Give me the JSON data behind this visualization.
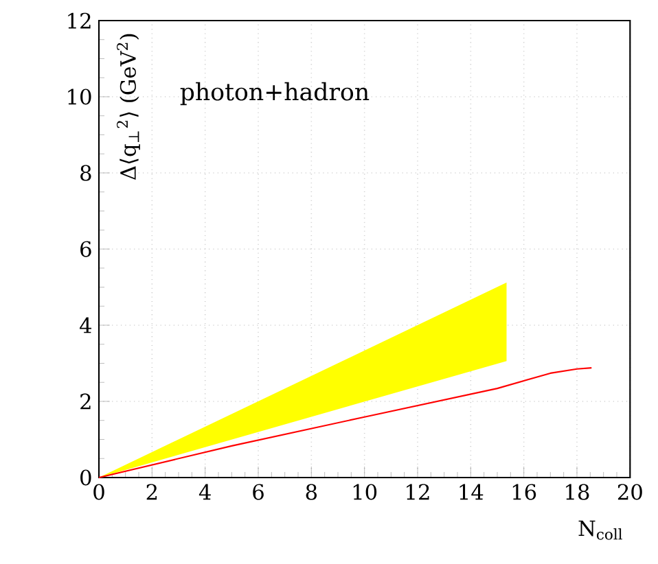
{
  "chart_data": {
    "type": "line",
    "xlabel": "N$_{coll}$",
    "ylabel": "Δ⟨q$_{⊥}$$^{2}$⟩ (GeV$^{2}$)",
    "annotations": [
      "photon+hadron"
    ],
    "series": [
      {
        "type": "area",
        "color": "#ffff00",
        "x": [
          0,
          15.35
        ],
        "values": [
          null,
          null
        ],
        "lower": [
          0,
          3.06
        ],
        "upper": [
          0,
          5.12
        ]
      },
      {
        "color": "#ff0000",
        "x": [
          0,
          5,
          10,
          15,
          17,
          18,
          18.55
        ],
        "values": [
          0,
          0.83,
          1.59,
          2.34,
          2.74,
          2.85,
          2.88
        ]
      }
    ],
    "xlim": [
      0,
      20
    ],
    "ylim": [
      0,
      12
    ],
    "xticks": [
      0,
      2,
      4,
      6,
      8,
      10,
      12,
      14,
      16,
      18,
      20
    ],
    "yticks": [
      0,
      2,
      4,
      6,
      8,
      10,
      12
    ],
    "grid": true,
    "marker": "none",
    "line_style": "solid"
  }
}
